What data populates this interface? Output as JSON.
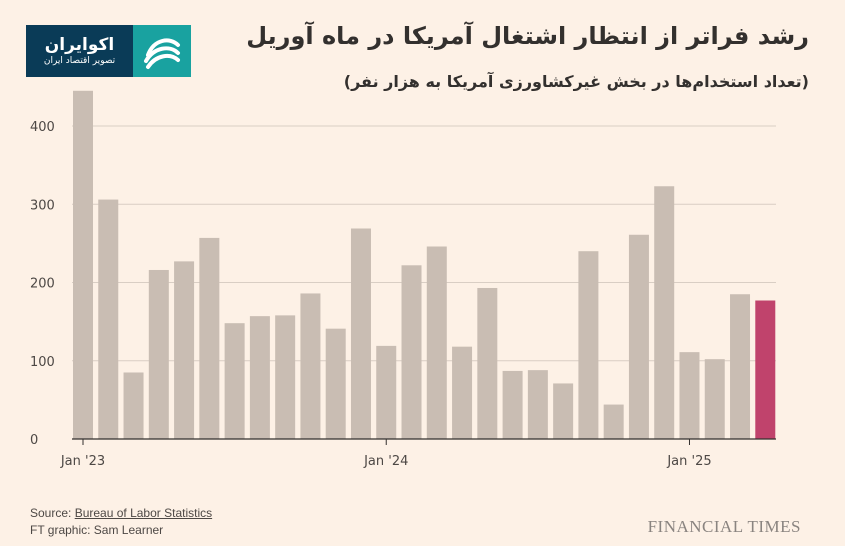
{
  "logo": {
    "name": "اکوایران",
    "tagline": "تصویر اقتصاد ایران"
  },
  "title": "رشد فراتر از انتظار اشتغال آمریکا در ماه آوریل",
  "subtitle": "(تعداد استخدام‌ها در بخش غیرکشاورزی آمریکا به هزار نفر)",
  "footer": {
    "source_prefix": "Source: ",
    "source_link": "Bureau of Labor Statistics",
    "credit": "FT graphic: Sam Learner",
    "brand": "FINANCIAL TIMES"
  },
  "colors": {
    "bar": "#c9bdb3",
    "highlight": "#c0436c",
    "grid": "#d9cec4",
    "axis": "#33302e"
  },
  "chart_data": {
    "type": "bar",
    "title": "رشد فراتر از انتظار اشتغال آمریکا در ماه آوریل",
    "xlabel": "",
    "ylabel": "",
    "ylim": [
      0,
      400
    ],
    "yticks": [
      0,
      100,
      200,
      300,
      400
    ],
    "x_tick_labels": [
      {
        "index": 0,
        "label": "Jan '23"
      },
      {
        "index": 12,
        "label": "Jan '24"
      },
      {
        "index": 24,
        "label": "Jan '25"
      }
    ],
    "categories": [
      "2023-01",
      "2023-02",
      "2023-03",
      "2023-04",
      "2023-05",
      "2023-06",
      "2023-07",
      "2023-08",
      "2023-09",
      "2023-10",
      "2023-11",
      "2023-12",
      "2024-01",
      "2024-02",
      "2024-03",
      "2024-04",
      "2024-05",
      "2024-06",
      "2024-07",
      "2024-08",
      "2024-09",
      "2024-10",
      "2024-11",
      "2024-12",
      "2025-01",
      "2025-02",
      "2025-03",
      "2025-04"
    ],
    "values": [
      445,
      306,
      85,
      216,
      227,
      257,
      148,
      157,
      158,
      186,
      141,
      269,
      119,
      222,
      246,
      118,
      193,
      87,
      88,
      71,
      240,
      44,
      261,
      323,
      111,
      102,
      185,
      177
    ],
    "highlight_index": 27
  }
}
